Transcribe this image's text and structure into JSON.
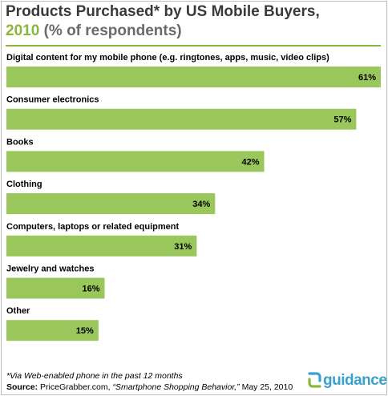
{
  "title": {
    "line1": "Products Purchased* by US Mobile Buyers,",
    "year": "2010",
    "unit": "(% of respondents)"
  },
  "chart_data": {
    "type": "bar",
    "orientation": "horizontal",
    "categories": [
      "Digital content for my mobile phone (e.g. ringtones, apps, music, video clips)",
      "Consumer electronics",
      "Books",
      "Clothing",
      "Computers, laptops or related equipment",
      "Jewelry and watches",
      "Other"
    ],
    "values": [
      61,
      57,
      42,
      34,
      31,
      16,
      15
    ],
    "value_labels": [
      "61%",
      "57%",
      "42%",
      "34%",
      "31%",
      "16%",
      "15%"
    ],
    "xlim": [
      0,
      61
    ],
    "grid": false,
    "legend": "none",
    "bar_color": "#99c75b"
  },
  "footer": {
    "note": "*Via Web-enabled phone in the past 12 months",
    "source_label": "Source:",
    "source_org": "PriceGrabber.com, ",
    "source_title": "“Smartphone Shopping Behavior,”",
    "source_date": " May 25, 2010"
  },
  "brand": {
    "name": "guidance",
    "colors": [
      "#3aa1cf",
      "#8ab63e"
    ]
  }
}
